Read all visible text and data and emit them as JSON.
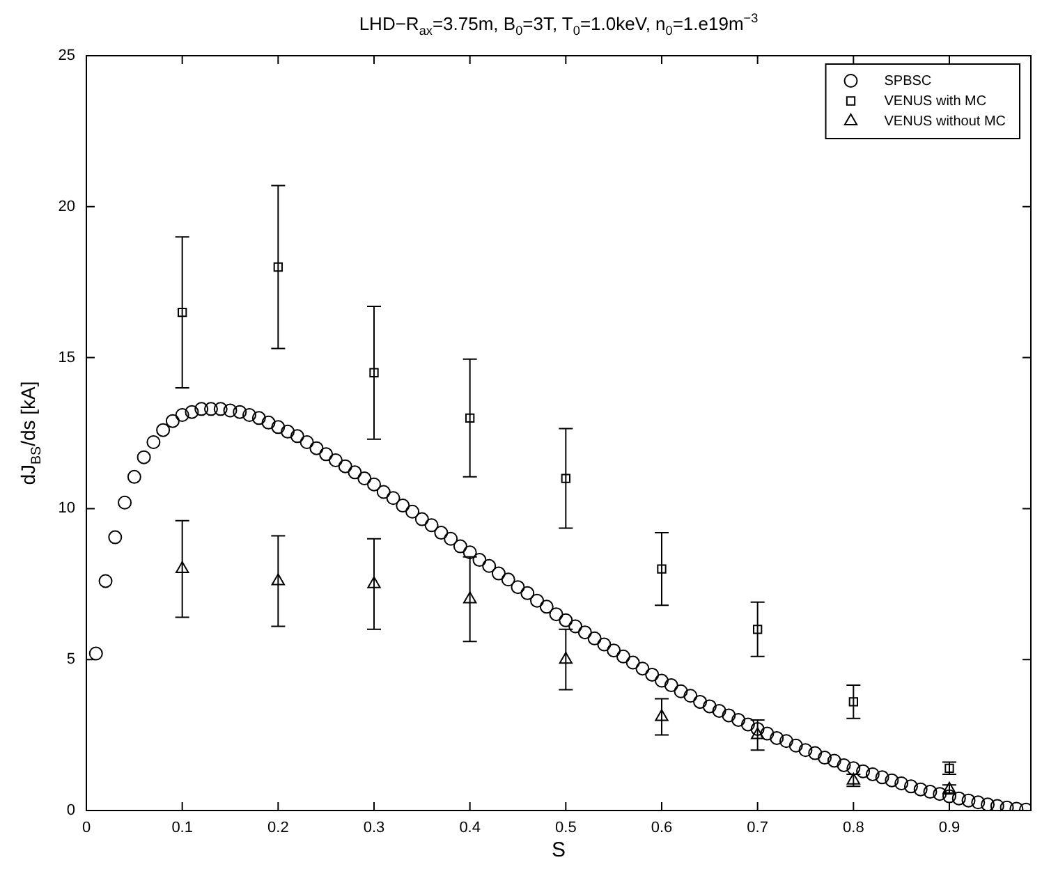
{
  "chart_data": {
    "type": "scatter",
    "title": "LHD−R$_{ax}$=3.75m, B$_{0}$=3T, T$_{0}$=1.0keV, n$_{0}$=1.e19m$^{−3}$",
    "xlabel": "S",
    "ylabel": "dJ$_{BS}$/ds  [kA]",
    "xlim": [
      0,
      0.985
    ],
    "ylim": [
      0,
      25
    ],
    "xticks": [
      0,
      0.1,
      0.2,
      0.3,
      0.4,
      0.5,
      0.6,
      0.7,
      0.8,
      0.9
    ],
    "yticks": [
      0,
      5,
      10,
      15,
      20,
      25
    ],
    "legend": "top right",
    "series": [
      {
        "name": "SPBSC",
        "color": "#000000",
        "marker": "circle",
        "x": [
          0.01,
          0.02,
          0.03,
          0.04,
          0.05,
          0.06,
          0.07,
          0.08,
          0.09,
          0.1,
          0.11,
          0.12,
          0.13,
          0.14,
          0.15,
          0.16,
          0.17,
          0.18,
          0.19,
          0.2,
          0.21,
          0.22,
          0.23,
          0.24,
          0.25,
          0.26,
          0.27,
          0.28,
          0.29,
          0.3,
          0.31,
          0.32,
          0.33,
          0.34,
          0.35,
          0.36,
          0.37,
          0.38,
          0.39,
          0.4,
          0.41,
          0.42,
          0.43,
          0.44,
          0.45,
          0.46,
          0.47,
          0.48,
          0.49,
          0.5,
          0.51,
          0.52,
          0.53,
          0.54,
          0.55,
          0.56,
          0.57,
          0.58,
          0.59,
          0.6,
          0.61,
          0.62,
          0.63,
          0.64,
          0.65,
          0.66,
          0.67,
          0.68,
          0.69,
          0.7,
          0.71,
          0.72,
          0.73,
          0.74,
          0.75,
          0.76,
          0.77,
          0.78,
          0.79,
          0.8,
          0.81,
          0.82,
          0.83,
          0.84,
          0.85,
          0.86,
          0.87,
          0.88,
          0.89,
          0.9,
          0.91,
          0.92,
          0.93,
          0.94,
          0.95,
          0.96,
          0.97,
          0.98
        ],
        "values": [
          5.2,
          7.6,
          9.05,
          10.2,
          11.05,
          11.7,
          12.2,
          12.6,
          12.9,
          13.1,
          13.2,
          13.3,
          13.3,
          13.3,
          13.25,
          13.2,
          13.1,
          13.0,
          12.85,
          12.7,
          12.55,
          12.4,
          12.2,
          12.0,
          11.8,
          11.6,
          11.4,
          11.2,
          11.0,
          10.8,
          10.55,
          10.35,
          10.1,
          9.9,
          9.65,
          9.45,
          9.2,
          9.0,
          8.75,
          8.55,
          8.3,
          8.1,
          7.85,
          7.65,
          7.4,
          7.2,
          6.95,
          6.75,
          6.5,
          6.3,
          6.1,
          5.9,
          5.7,
          5.5,
          5.3,
          5.1,
          4.9,
          4.7,
          4.5,
          4.3,
          4.15,
          3.95,
          3.8,
          3.6,
          3.45,
          3.3,
          3.15,
          3.0,
          2.85,
          2.7,
          2.55,
          2.4,
          2.3,
          2.15,
          2.0,
          1.9,
          1.75,
          1.65,
          1.5,
          1.4,
          1.3,
          1.2,
          1.1,
          1.0,
          0.9,
          0.8,
          0.7,
          0.62,
          0.55,
          0.47,
          0.4,
          0.33,
          0.27,
          0.2,
          0.15,
          0.1,
          0.06,
          0.03
        ]
      },
      {
        "name": "VENUS with MC",
        "color": "#000000",
        "marker": "square",
        "x": [
          0.1,
          0.2,
          0.3,
          0.4,
          0.5,
          0.6,
          0.7,
          0.8,
          0.9
        ],
        "values": [
          16.5,
          18.0,
          14.5,
          13.0,
          11.0,
          8.0,
          6.0,
          3.6,
          1.4
        ],
        "errors": [
          [
            14.0,
            19.0
          ],
          [
            15.3,
            20.7
          ],
          [
            12.3,
            16.7
          ],
          [
            11.05,
            14.95
          ],
          [
            9.35,
            12.65
          ],
          [
            6.8,
            9.2
          ],
          [
            5.1,
            6.9
          ],
          [
            3.05,
            4.15
          ],
          [
            1.2,
            1.6
          ]
        ]
      },
      {
        "name": "VENUS without MC",
        "color": "#000000",
        "marker": "triangle",
        "x": [
          0.1,
          0.2,
          0.3,
          0.4,
          0.5,
          0.6,
          0.7,
          0.8,
          0.9
        ],
        "values": [
          8.0,
          7.6,
          7.5,
          7.0,
          5.0,
          3.1,
          2.5,
          1.0,
          0.7
        ],
        "errors": [
          [
            6.4,
            9.6
          ],
          [
            6.1,
            9.1
          ],
          [
            6.0,
            9.0
          ],
          [
            5.6,
            8.4
          ],
          [
            4.0,
            6.0
          ],
          [
            2.5,
            3.7
          ],
          [
            2.0,
            3.0
          ],
          [
            0.8,
            1.2
          ],
          [
            0.55,
            0.85
          ]
        ]
      }
    ]
  }
}
